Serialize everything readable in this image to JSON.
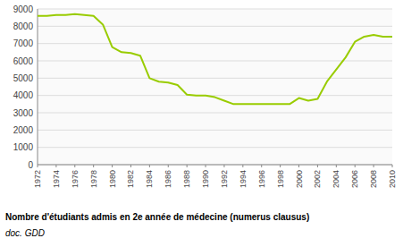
{
  "chart_data": {
    "type": "line",
    "title": "Nombre d'étudiants admis en 2e année de médecine (numerus clausus)",
    "subtitle": "doc. GDD",
    "x": [
      1972,
      1973,
      1974,
      1975,
      1976,
      1977,
      1978,
      1979,
      1980,
      1981,
      1982,
      1983,
      1984,
      1985,
      1986,
      1987,
      1988,
      1989,
      1990,
      1991,
      1992,
      1993,
      1994,
      1995,
      1996,
      1997,
      1998,
      1999,
      2000,
      2001,
      2002,
      2003,
      2004,
      2005,
      2006,
      2007,
      2008,
      2009,
      2010
    ],
    "values": [
      8600,
      8600,
      8650,
      8650,
      8700,
      8650,
      8600,
      8100,
      6800,
      6500,
      6450,
      6300,
      5000,
      4800,
      4750,
      4600,
      4050,
      4000,
      4000,
      3900,
      3700,
      3500,
      3500,
      3500,
      3500,
      3500,
      3500,
      3500,
      3850,
      3700,
      3800,
      4800,
      5500,
      6200,
      7100,
      7400,
      7500,
      7400,
      7400
    ],
    "color": "#99cc00",
    "xlim": [
      1972,
      2010
    ],
    "xticks": [
      1972,
      1974,
      1976,
      1978,
      1980,
      1982,
      1984,
      1986,
      1988,
      1990,
      1992,
      1994,
      1996,
      1998,
      2000,
      2002,
      2004,
      2006,
      2008,
      2010
    ],
    "ylim": [
      0,
      9000
    ],
    "yticks": [
      0,
      1000,
      2000,
      3000,
      4000,
      5000,
      6000,
      7000,
      8000,
      9000
    ],
    "grid": true
  }
}
